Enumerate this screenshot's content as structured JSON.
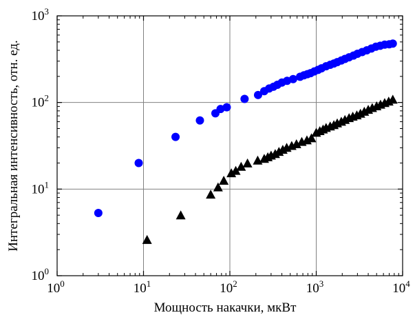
{
  "chart_data": {
    "type": "scatter",
    "title": "",
    "xlabel": "Мощность накачки, мкВт",
    "ylabel": "Интегральная интенсивность, отн. ед.",
    "xscale": "log",
    "yscale": "log",
    "xlim": [
      1,
      10000
    ],
    "ylim": [
      1,
      1000
    ],
    "grid": true,
    "xticks": [
      {
        "base": "10",
        "exp": "0",
        "value": 1
      },
      {
        "base": "10",
        "exp": "1",
        "value": 10
      },
      {
        "base": "10",
        "exp": "2",
        "value": 100
      },
      {
        "base": "10",
        "exp": "3",
        "value": 1000
      },
      {
        "base": "10",
        "exp": "4",
        "value": 10000
      }
    ],
    "yticks": [
      {
        "base": "10",
        "exp": "0",
        "value": 1
      },
      {
        "base": "10",
        "exp": "1",
        "value": 10
      },
      {
        "base": "10",
        "exp": "2",
        "value": 100
      },
      {
        "base": "10",
        "exp": "3",
        "value": 1000
      }
    ],
    "series": [
      {
        "marker": "circle",
        "color": "#0000ff",
        "points": [
          [
            3,
            5.3
          ],
          [
            8.8,
            20
          ],
          [
            23.5,
            40
          ],
          [
            45,
            62
          ],
          [
            68,
            75
          ],
          [
            78,
            84
          ],
          [
            92,
            88
          ],
          [
            148,
            110
          ],
          [
            212,
            122
          ],
          [
            250,
            135
          ],
          [
            285,
            145
          ],
          [
            320,
            152
          ],
          [
            355,
            160
          ],
          [
            400,
            170
          ],
          [
            460,
            178
          ],
          [
            540,
            186
          ],
          [
            650,
            198
          ],
          [
            720,
            206
          ],
          [
            790,
            212
          ],
          [
            860,
            218
          ],
          [
            950,
            228
          ],
          [
            1050,
            238
          ],
          [
            1150,
            248
          ],
          [
            1300,
            262
          ],
          [
            1450,
            272
          ],
          [
            1600,
            282
          ],
          [
            1750,
            292
          ],
          [
            1950,
            305
          ],
          [
            2150,
            318
          ],
          [
            2400,
            332
          ],
          [
            2700,
            348
          ],
          [
            3000,
            365
          ],
          [
            3400,
            382
          ],
          [
            3850,
            400
          ],
          [
            4350,
            420
          ],
          [
            4900,
            440
          ],
          [
            5500,
            452
          ],
          [
            6200,
            465
          ],
          [
            7000,
            470
          ],
          [
            7700,
            478
          ]
        ]
      },
      {
        "marker": "triangle",
        "color": "#000000",
        "points": [
          [
            11,
            2.55
          ],
          [
            27,
            4.9
          ],
          [
            60,
            8.5
          ],
          [
            73,
            10.3
          ],
          [
            85,
            12.3
          ],
          [
            104,
            15
          ],
          [
            117,
            16
          ],
          [
            135,
            17.8
          ],
          [
            160,
            19.5
          ],
          [
            210,
            21
          ],
          [
            250,
            22
          ],
          [
            275,
            23
          ],
          [
            300,
            24
          ],
          [
            335,
            25
          ],
          [
            370,
            26.5
          ],
          [
            410,
            28
          ],
          [
            455,
            29.5
          ],
          [
            520,
            31
          ],
          [
            590,
            32.5
          ],
          [
            680,
            34.5
          ],
          [
            780,
            36
          ],
          [
            880,
            38
          ],
          [
            1000,
            44
          ],
          [
            1100,
            46
          ],
          [
            1200,
            48
          ],
          [
            1300,
            50
          ],
          [
            1450,
            52
          ],
          [
            1600,
            54
          ],
          [
            1750,
            56.5
          ],
          [
            1950,
            59
          ],
          [
            2150,
            62
          ],
          [
            2400,
            65
          ],
          [
            2650,
            67.5
          ],
          [
            2950,
            70
          ],
          [
            3250,
            73
          ],
          [
            3600,
            77
          ],
          [
            4000,
            81
          ],
          [
            4450,
            85
          ],
          [
            5000,
            89
          ],
          [
            5550,
            93
          ],
          [
            6200,
            97
          ],
          [
            6900,
            101
          ],
          [
            7700,
            106
          ]
        ]
      }
    ]
  }
}
